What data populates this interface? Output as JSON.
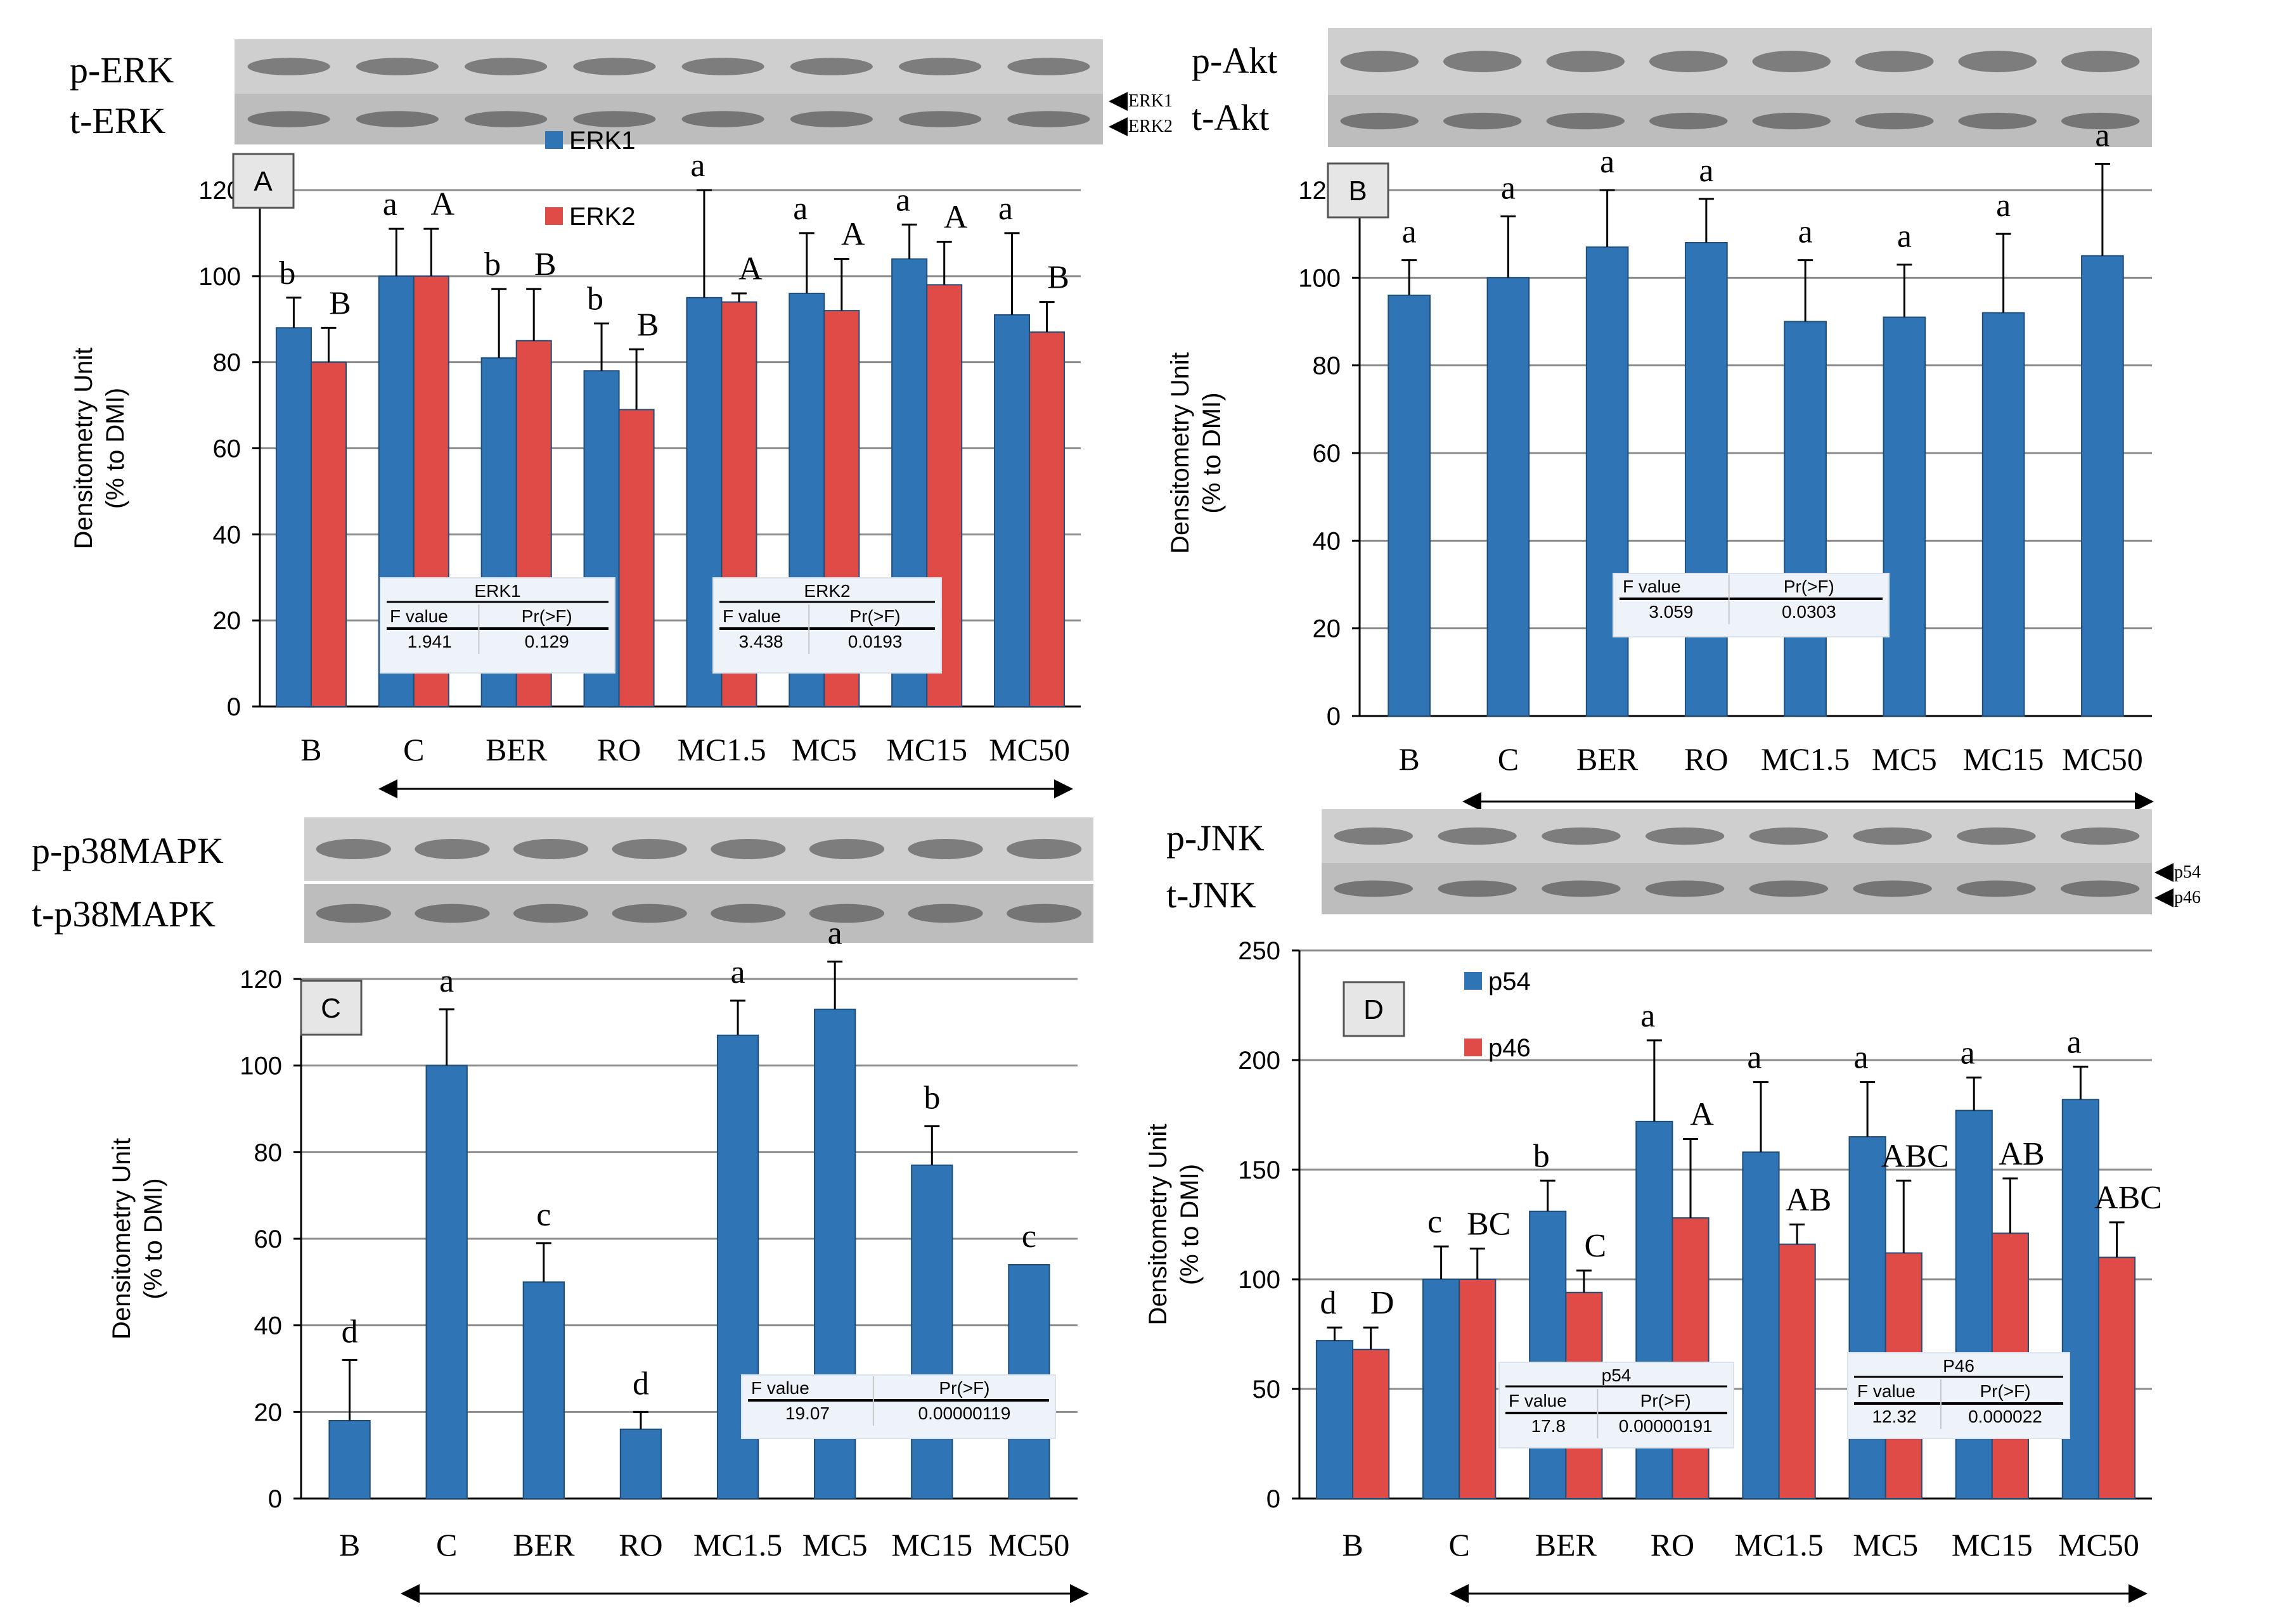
{
  "figure": {
    "x_axis_tick_labels": [
      "B",
      "C",
      "BER",
      "RO",
      "MC1.5",
      "MC5",
      "MC15",
      "MC50"
    ],
    "y_axis_label_line1": "Densitometry Unit",
    "y_axis_label_line2": "(% to DMI)",
    "series_colors": {
      "blue": "#2f74b5",
      "red": "#e04b47"
    }
  },
  "chart_data": [
    {
      "panel": "A",
      "type": "bar",
      "blot_labels": [
        "p-ERK",
        "t-ERK"
      ],
      "band_labels": [
        "ERK1",
        "ERK2"
      ],
      "categories": [
        "B",
        "C",
        "BER",
        "RO",
        "MC1.5",
        "MC5",
        "MC15",
        "MC50"
      ],
      "legend": [
        "ERK1",
        "ERK2"
      ],
      "ylim": [
        0,
        120
      ],
      "yticks": [
        0,
        20,
        40,
        60,
        80,
        100,
        120
      ],
      "grid": true,
      "series": [
        {
          "name": "ERK1",
          "color": "#2f74b5",
          "values": [
            88,
            100,
            81,
            78,
            95,
            96,
            104,
            91
          ],
          "errors": [
            7,
            11,
            16,
            11,
            25,
            14,
            8,
            19
          ],
          "letters": [
            "b",
            "a",
            "b",
            "b",
            "a",
            "a",
            "a",
            "a"
          ]
        },
        {
          "name": "ERK2",
          "color": "#e04b47",
          "values": [
            80,
            100,
            85,
            69,
            94,
            92,
            98,
            87
          ],
          "errors": [
            8,
            11,
            12,
            14,
            2,
            12,
            10,
            7
          ],
          "letters": [
            "B",
            "A",
            "B",
            "B",
            "A",
            "A",
            "A",
            "B"
          ]
        }
      ],
      "stats_tables": [
        {
          "title": "ERK1",
          "headers": [
            "F value",
            "Pr(>F)"
          ],
          "values": [
            "1.941",
            "0.129"
          ]
        },
        {
          "title": "ERK2",
          "headers": [
            "F value",
            "Pr(>F)"
          ],
          "values": [
            "3.438",
            "0.0193"
          ]
        }
      ]
    },
    {
      "panel": "B",
      "type": "bar",
      "blot_labels": [
        "p-Akt",
        "t-Akt"
      ],
      "categories": [
        "B",
        "C",
        "BER",
        "RO",
        "MC1.5",
        "MC5",
        "MC15",
        "MC50"
      ],
      "ylim": [
        0,
        120
      ],
      "yticks": [
        0,
        20,
        40,
        60,
        80,
        100,
        120
      ],
      "grid": true,
      "series": [
        {
          "color": "#2f74b5",
          "values": [
            96,
            100,
            107,
            108,
            90,
            91,
            92,
            105
          ],
          "errors": [
            8,
            14,
            13,
            10,
            14,
            12,
            18,
            21
          ],
          "letters": [
            "a",
            "a",
            "a",
            "a",
            "a",
            "a",
            "a",
            "a"
          ]
        }
      ],
      "stats_tables": [
        {
          "title": "",
          "headers": [
            "F value",
            "Pr(>F)"
          ],
          "values": [
            "3.059",
            "0.0303"
          ]
        }
      ]
    },
    {
      "panel": "C",
      "type": "bar",
      "blot_labels": [
        "p-p38MAPK",
        "t-p38MAPK"
      ],
      "categories": [
        "B",
        "C",
        "BER",
        "RO",
        "MC1.5",
        "MC5",
        "MC15",
        "MC50"
      ],
      "ylim": [
        0,
        120
      ],
      "yticks": [
        0,
        20,
        40,
        60,
        80,
        100,
        120
      ],
      "grid": true,
      "series": [
        {
          "color": "#2f74b5",
          "values": [
            18,
            100,
            50,
            16,
            107,
            113,
            77,
            54
          ],
          "errors": [
            14,
            13,
            9,
            4,
            8,
            11,
            9,
            0
          ],
          "letters": [
            "d",
            "a",
            "c",
            "d",
            "a",
            "a",
            "b",
            "c"
          ]
        }
      ],
      "stats_tables": [
        {
          "title": "",
          "headers": [
            "F value",
            "Pr(>F)"
          ],
          "values": [
            "19.07",
            "0.00000119"
          ]
        }
      ]
    },
    {
      "panel": "D",
      "type": "bar",
      "blot_labels": [
        "p-JNK",
        "t-JNK"
      ],
      "band_labels": [
        "p54",
        "p46"
      ],
      "categories": [
        "B",
        "C",
        "BER",
        "RO",
        "MC1.5",
        "MC5",
        "MC15",
        "MC50"
      ],
      "legend": [
        "p54",
        "p46"
      ],
      "ylim": [
        0,
        250
      ],
      "yticks": [
        0,
        50,
        100,
        150,
        200,
        250
      ],
      "grid": true,
      "series": [
        {
          "name": "p54",
          "color": "#2f74b5",
          "values": [
            72,
            100,
            131,
            172,
            158,
            165,
            177,
            182
          ],
          "errors": [
            6,
            15,
            14,
            37,
            32,
            25,
            15,
            15
          ],
          "letters": [
            "d",
            "c",
            "b",
            "a",
            "a",
            "a",
            "a",
            "a"
          ]
        },
        {
          "name": "p46",
          "color": "#e04b47",
          "values": [
            68,
            100,
            94,
            128,
            116,
            112,
            121,
            110
          ],
          "errors": [
            10,
            14,
            10,
            36,
            9,
            33,
            25,
            16
          ],
          "letters": [
            "D",
            "BC",
            "C",
            "A",
            "AB",
            "ABC",
            "AB",
            "ABC"
          ]
        }
      ],
      "stats_tables": [
        {
          "title": "p54",
          "headers": [
            "F value",
            "Pr(>F)"
          ],
          "values": [
            "17.8",
            "0.00000191"
          ]
        },
        {
          "title": "P46",
          "headers": [
            "F value",
            "Pr(>F)"
          ],
          "values": [
            "12.32",
            "0.000022"
          ]
        }
      ]
    }
  ]
}
